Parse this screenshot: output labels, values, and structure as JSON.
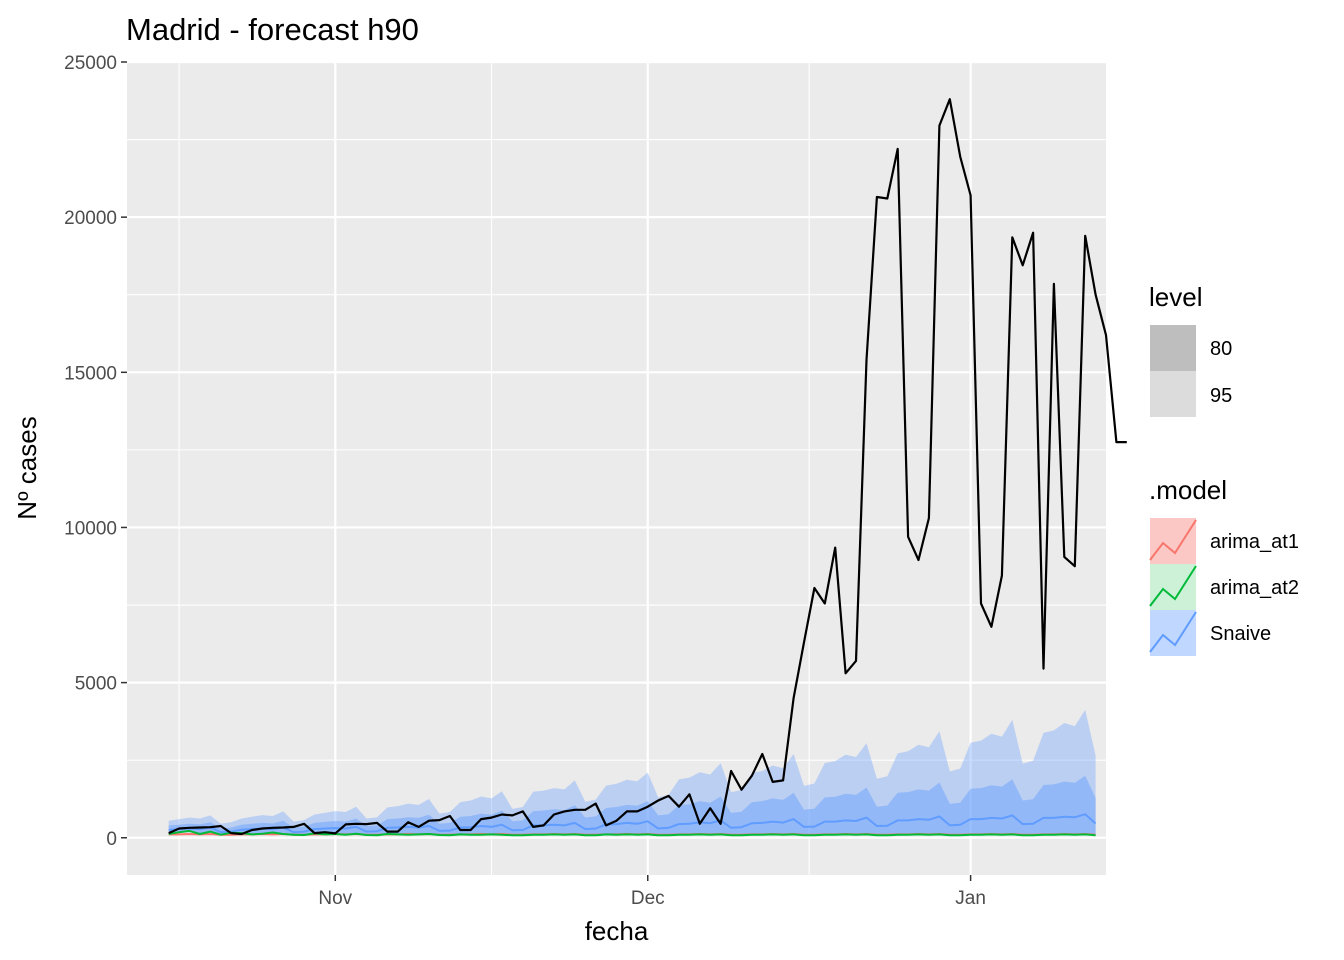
{
  "chart_data": {
    "type": "line",
    "title": "Madrid - forecast h90",
    "xlabel": "fecha",
    "ylabel": "Nº cases",
    "ylim": [
      -1200,
      25000
    ],
    "xlim": [
      "2020-10-12",
      "2021-01-14"
    ],
    "y_ticks": [
      0,
      5000,
      10000,
      15000,
      20000,
      25000
    ],
    "y_tick_labels": [
      "0",
      "5000",
      "10000",
      "15000",
      "20000",
      "25000"
    ],
    "x_ticks": [
      "2020-11-01",
      "2020-12-01",
      "2021-01-01"
    ],
    "x_tick_labels": [
      "Nov",
      "Dec",
      "Jan"
    ],
    "grid": true,
    "legend_position": "right",
    "legend": {
      "level": {
        "title": "level",
        "items": [
          {
            "label": "80",
            "color": "#bebebe"
          },
          {
            "label": "95",
            "color": "#dcdcdc"
          }
        ]
      },
      "model": {
        "title": ".model",
        "items": [
          {
            "label": "arima_at1",
            "color": "#f8766d"
          },
          {
            "label": "arima_at2",
            "color": "#00ba38"
          },
          {
            "label": "Snaive",
            "color": "#619cff"
          }
        ]
      }
    },
    "colors": {
      "panel": "#ebebeb",
      "grid": "#ffffff",
      "actual": "#000000",
      "arima_at1": "#f8766d",
      "arima_at2": "#00ba38",
      "Snaive": "#619cff"
    },
    "series": [
      {
        "name": "actual",
        "x_start": "2020-10-16",
        "values": [
          150,
          300,
          320,
          330,
          340,
          380,
          150,
          120,
          250,
          300,
          320,
          330,
          350,
          450,
          150,
          180,
          140,
          430,
          450,
          440,
          480,
          200,
          200,
          500,
          350,
          550,
          570,
          700,
          250,
          250,
          600,
          650,
          750,
          720,
          850,
          350,
          400,
          750,
          850,
          900,
          900,
          1100,
          400,
          550,
          850,
          850,
          1000,
          1200,
          1350,
          1000,
          1400,
          450,
          950,
          450,
          2150,
          1550,
          2000,
          2700,
          1800,
          1850,
          4500,
          6300,
          8050,
          7550,
          9350,
          5300,
          5700,
          15400,
          20650,
          20600,
          22200,
          9700,
          8950,
          10300,
          22950,
          23800,
          21950,
          20700,
          7550,
          6800,
          8450,
          19350,
          18450,
          19500,
          5450,
          17850,
          9050,
          8750,
          19400,
          17500,
          16200,
          12750,
          12750
        ]
      },
      {
        "name": "Snaive",
        "x_start": "2020-10-16",
        "mean": [
          250,
          280,
          300,
          280,
          330,
          180,
          200,
          260,
          280,
          300,
          280,
          330,
          180,
          200,
          280,
          300,
          310,
          300,
          350,
          200,
          210,
          320,
          330,
          350,
          330,
          380,
          220,
          230,
          330,
          340,
          380,
          350,
          420,
          240,
          250,
          400,
          400,
          420,
          400,
          480,
          280,
          300,
          430,
          440,
          480,
          450,
          530,
          300,
          320,
          440,
          450,
          500,
          470,
          560,
          320,
          340,
          470,
          480,
          520,
          490,
          600,
          350,
          360,
          520,
          520,
          560,
          540,
          650,
          380,
          390,
          560,
          560,
          600,
          580,
          690,
          400,
          420,
          600,
          600,
          640,
          620,
          720,
          440,
          450,
          640,
          640,
          680,
          660,
          760,
          460
        ],
        "lo80": [
          150,
          170,
          180,
          150,
          190,
          90,
          100,
          130,
          140,
          150,
          130,
          160,
          80,
          90,
          130,
          140,
          140,
          130,
          150,
          80,
          80,
          130,
          130,
          140,
          130,
          140,
          80,
          80,
          120,
          120,
          130,
          120,
          140,
          80,
          80,
          130,
          130,
          130,
          120,
          140,
          80,
          80,
          120,
          120,
          130,
          120,
          140,
          70,
          80,
          110,
          110,
          120,
          110,
          130,
          70,
          70,
          100,
          100,
          110,
          100,
          120,
          60,
          60,
          90,
          90,
          100,
          90,
          110,
          60,
          60,
          90,
          90,
          100,
          90,
          110,
          60,
          60,
          90,
          90,
          90,
          90,
          100,
          60,
          60,
          90,
          90,
          90,
          90,
          100,
          60
        ],
        "hi80": [
          400,
          420,
          450,
          430,
          500,
          300,
          330,
          420,
          450,
          480,
          460,
          550,
          330,
          360,
          480,
          510,
          540,
          520,
          620,
          380,
          400,
          600,
          620,
          660,
          640,
          740,
          450,
          480,
          680,
          700,
          780,
          740,
          880,
          530,
          560,
          860,
          880,
          920,
          890,
          1050,
          650,
          690,
          960,
          990,
          1060,
          1030,
          1180,
          720,
          760,
          1050,
          1080,
          1180,
          1130,
          1330,
          800,
          840,
          1150,
          1180,
          1270,
          1220,
          1450,
          900,
          940,
          1300,
          1320,
          1420,
          1380,
          1620,
          1000,
          1040,
          1450,
          1470,
          1560,
          1520,
          1780,
          1090,
          1130,
          1580,
          1600,
          1690,
          1650,
          1880,
          1200,
          1240,
          1700,
          1720,
          1810,
          1770,
          2000,
          1280
        ],
        "hi95": [
          550,
          600,
          650,
          620,
          720,
          450,
          500,
          620,
          680,
          730,
          700,
          850,
          520,
          570,
          750,
          800,
          860,
          830,
          1000,
          620,
          660,
          980,
          1020,
          1100,
          1060,
          1250,
          780,
          830,
          1150,
          1200,
          1330,
          1270,
          1500,
          930,
          990,
          1480,
          1520,
          1600,
          1560,
          1850,
          1160,
          1230,
          1680,
          1740,
          1870,
          1820,
          2100,
          1300,
          1380,
          1880,
          1940,
          2110,
          2040,
          2400,
          1470,
          1540,
          2090,
          2150,
          2330,
          2240,
          2700,
          1670,
          1750,
          2410,
          2470,
          2680,
          2600,
          3050,
          1900,
          1980,
          2720,
          2790,
          3000,
          2920,
          3430,
          2140,
          2230,
          3060,
          3130,
          3350,
          3260,
          3800,
          2390,
          2480,
          3380,
          3460,
          3700,
          3600,
          4120,
          2650
        ]
      },
      {
        "name": "arima_at1",
        "x_start": "2020-10-16",
        "mean": [
          110,
          110,
          120,
          110,
          120,
          100,
          100,
          110,
          110,
          120,
          110,
          120,
          100,
          100,
          110,
          110,
          120,
          110,
          120,
          100,
          100,
          110,
          110,
          120,
          110,
          120,
          100,
          100,
          110,
          110,
          120,
          110,
          120,
          100,
          100,
          110,
          110,
          120,
          110,
          120,
          100,
          100,
          110,
          110,
          120,
          110,
          120,
          100,
          100,
          110,
          110,
          120,
          110,
          120,
          100,
          100,
          110,
          110,
          120,
          110,
          120,
          100,
          100,
          110,
          110,
          120,
          110,
          120,
          100,
          100,
          110,
          110,
          120,
          110,
          120,
          100,
          100,
          110,
          110,
          120,
          110,
          120,
          100,
          100,
          110,
          110,
          120,
          110,
          120,
          100
        ]
      },
      {
        "name": "arima_at2",
        "x_start": "2020-10-16",
        "mean": [
          120,
          180,
          220,
          120,
          200,
          100,
          160,
          150,
          110,
          130,
          170,
          120,
          100,
          90,
          140,
          110,
          120,
          100,
          130,
          90,
          80,
          120,
          110,
          100,
          110,
          120,
          90,
          80,
          110,
          100,
          100,
          110,
          100,
          80,
          80,
          100,
          100,
          110,
          100,
          110,
          80,
          80,
          110,
          100,
          110,
          100,
          110,
          80,
          80,
          100,
          100,
          110,
          100,
          110,
          80,
          80,
          100,
          100,
          110,
          100,
          110,
          80,
          80,
          100,
          100,
          110,
          100,
          110,
          80,
          80,
          100,
          100,
          110,
          100,
          110,
          80,
          80,
          100,
          100,
          110,
          100,
          110,
          80,
          80,
          100,
          100,
          110,
          100,
          110,
          80
        ]
      }
    ]
  }
}
